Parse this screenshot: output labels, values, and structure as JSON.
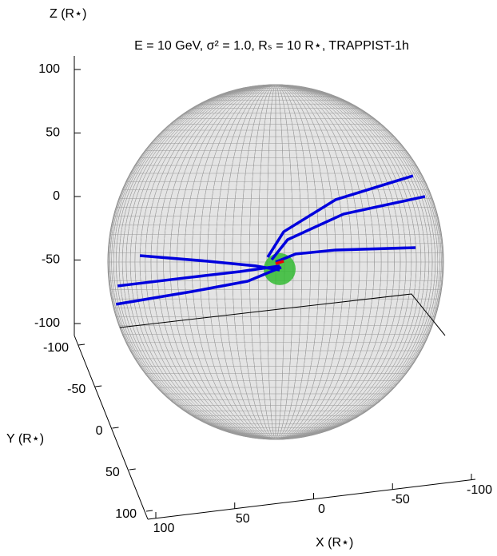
{
  "chart_data": {
    "type": "line3d",
    "title": "E = 10 GeV, σ² = 1.0, Rₛ = 10 R⋆, TRAPPIST-1h",
    "xlabel": "X (R⋆)",
    "ylabel": "Y (R⋆)",
    "zlabel": "Z (R⋆)",
    "xlim": [
      100,
      -100
    ],
    "xticks": [
      100,
      50,
      0,
      -50,
      -100
    ],
    "ylim": [
      -100,
      100
    ],
    "yticks": [
      -100,
      -50,
      0,
      50,
      100
    ],
    "zlim": [
      -100,
      100
    ],
    "zticks": [
      -100,
      -50,
      0,
      50,
      100
    ],
    "series": [
      {
        "color": "#0000dd",
        "x": [
          -85.6,
          -35.9,
          -2.6,
          7.7
        ],
        "z": [
          73.4,
          61.6,
          41.1,
          22.5
        ]
      },
      {
        "color": "#0000dd",
        "x": [
          -93.3,
          -41,
          -5.1,
          5.1
        ],
        "z": [
          56,
          49.6,
          34.5,
          20.2
        ]
      },
      {
        "color": "#0000dd",
        "x": [
          -87.2,
          -35.9,
          -10.3,
          2.6
        ],
        "z": [
          16.6,
          22,
          22.5,
          18
        ]
      },
      {
        "color": "#0000dd",
        "x": [
          89.7,
          46.2,
          15.4,
          0
        ],
        "z": [
          35.3,
          24.8,
          16.7,
          11.3
        ]
      },
      {
        "color": "#0000dd",
        "x": [
          104,
          61.5,
          25.6,
          0
        ],
        "z": [
          13.5,
          13.7,
          13.7,
          14.5
        ]
      },
      {
        "color": "#0000dd",
        "x": [
          105,
          56.4,
          20.5,
          -1
        ],
        "z": [
          -0.8,
          2.3,
          5.4,
          13.3
        ]
      },
      {
        "color": "#ee0000",
        "x": [
          2.6,
          -2.6
        ],
        "z": [
          16.7,
          17.9
        ]
      }
    ],
    "star": {
      "x": 0,
      "z": 12,
      "color": "#33bb33"
    }
  }
}
